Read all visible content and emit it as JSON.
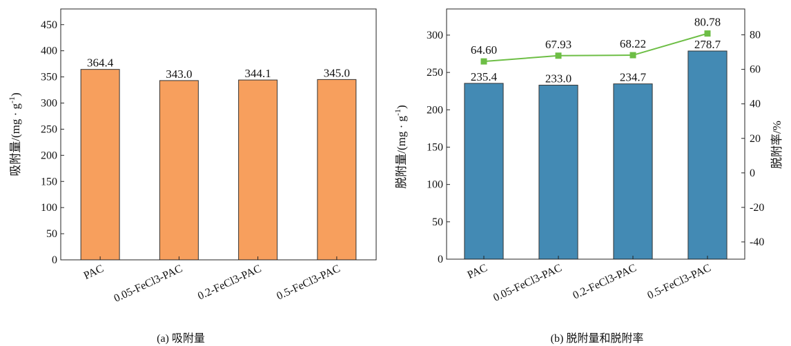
{
  "chart_data": [
    {
      "type": "bar",
      "caption": "(a) 吸附量",
      "ylabel": "吸附量/(mg · g",
      "ylabel_sup": "-1",
      "ylabel_close": ")",
      "categories": [
        "PAC",
        "0.05-FeCl3-PAC",
        "0.2-FeCl3-PAC",
        "0.5-FeCl3-PAC"
      ],
      "values": [
        364.4,
        343.0,
        344.1,
        345.0
      ],
      "value_labels": [
        "364.4",
        "343.0",
        "344.1",
        "345.0"
      ],
      "ylim": [
        0,
        480
      ],
      "yticks": [
        0,
        50,
        100,
        150,
        200,
        250,
        300,
        350,
        400,
        450
      ],
      "bar_color": "#F79F5D",
      "grid": false
    },
    {
      "type": "bar+line",
      "caption": "(b) 脱附量和脱附率",
      "ylabel": "脱附量/(mg · g",
      "ylabel_sup": "-1",
      "ylabel_close": ")",
      "y2label": "脱附率/%",
      "categories": [
        "PAC",
        "0.05-FeCl3-PAC",
        "0.2-FeCl3-PAC",
        "0.5-FeCl3-PAC"
      ],
      "values": [
        235.4,
        233.0,
        234.7,
        278.7
      ],
      "value_labels": [
        "235.4",
        "233.0",
        "234.7",
        "278.7"
      ],
      "ylim": [
        0,
        335
      ],
      "yticks": [
        0,
        50,
        100,
        150,
        200,
        250,
        300
      ],
      "line_values": [
        64.6,
        67.93,
        68.22,
        80.78
      ],
      "line_labels": [
        "64.60",
        "67.93",
        "68.22",
        "80.78"
      ],
      "y2lim": [
        -50,
        95
      ],
      "y2ticks": [
        -40,
        -20,
        0,
        20,
        40,
        60,
        80
      ],
      "bar_color": "#438AB4",
      "line_color": "#6DBE45",
      "grid": false
    }
  ]
}
